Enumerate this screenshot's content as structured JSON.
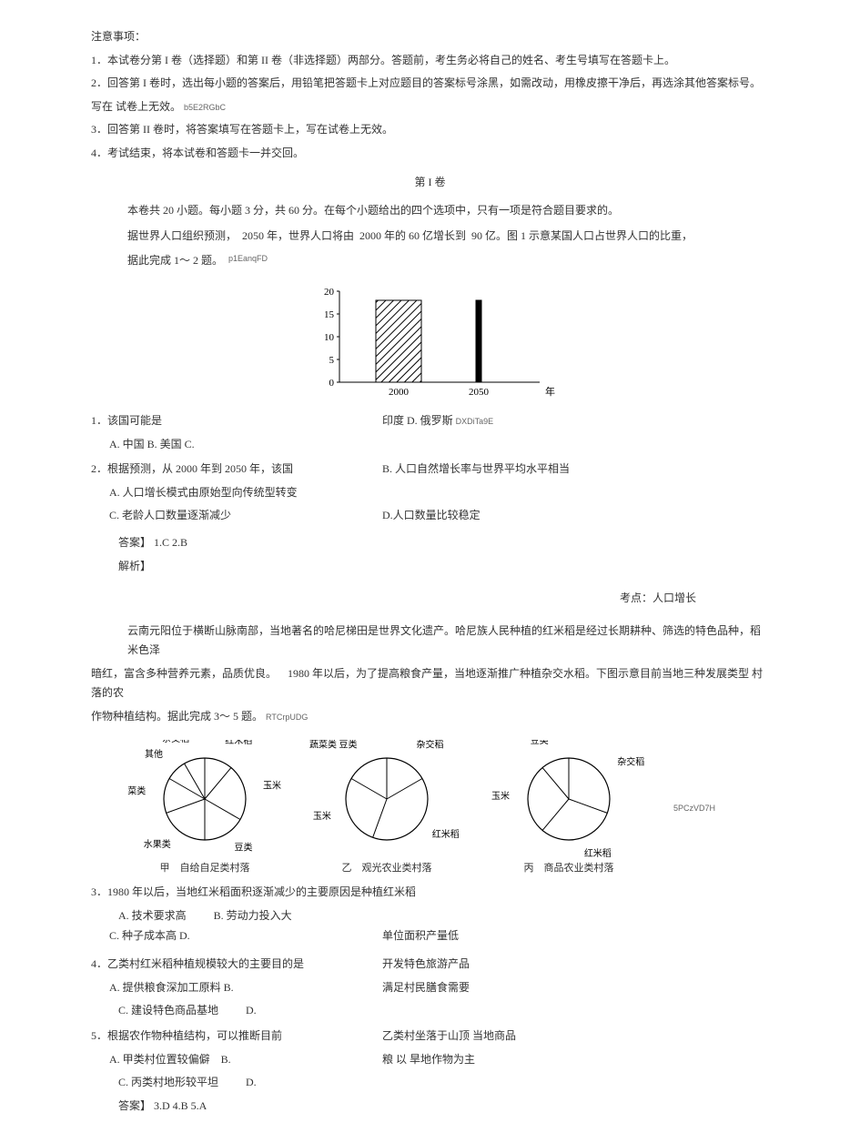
{
  "header": {
    "title": "注意事项：",
    "item1": "1．本试卷分第 I 卷（选择题）和第 II 卷（非选择题）两部分。答题前，考生务必将自己的姓名、考生号填写在答题卡上。",
    "item2a": "2．回答第 I 卷时，选出每小题的答案后，用铅笔把答题卡上对应题目的答案标号涂黑，如需改动，用橡皮擦干净后，再选涂其他答案标号。",
    "item2b": "写在 试卷上无效。",
    "code1": "b5E2RGbC",
    "item3": "3．回答第 II 卷时，将答案填写在答题卡上，写在试卷上无效。",
    "item4": "4．考试结束，将本试卷和答题卡一并交回。"
  },
  "volume": {
    "title": "第 I 卷",
    "intro": "本卷共 20 小题。每小题 3 分，共 60 分。在每个小题给出的四个选项中，只有一项是符合题目要求的。",
    "pred": {
      "p1": "据世界人口组织预测，",
      "p2": "2050 年，世界人口将由",
      "p3": "2000 年的 60 亿增长到",
      "p4": "90 亿。图 1 示意某国人口占世界人口的比重，",
      "p5": "据此完成 1～ 2 题。",
      "code": "p1EanqFD"
    }
  },
  "bar_chart": {
    "type": "bar",
    "ylim": [
      0,
      20
    ],
    "yticks": [
      0,
      5,
      10,
      15,
      20
    ],
    "categories": [
      "2000",
      "2050"
    ],
    "values": [
      18,
      18
    ],
    "bar2_narrow": true,
    "axis_label": "年",
    "axis_color": "#000000",
    "fill_pattern": "hatch",
    "stroke": "#000000",
    "background": "#ffffff"
  },
  "q1": {
    "stem": "1．该国可能是",
    "side": "印度 D. 俄罗斯",
    "code": "DXDiTa9E",
    "optA": "A. 中国 B. 美国 C."
  },
  "q2": {
    "stem": "2．根据预测，从 2000 年到 2050 年，该国",
    "optA": "A. 人口增长模式由原始型向传统型转变",
    "optB": "B. 人口自然增长率与世界平均水平相当",
    "optC": "C. 老龄人口数量逐渐减少",
    "optD": "D.人口数量比较稳定"
  },
  "ans12": {
    "ans": "答案】 1.C 2.B",
    "exp": "解析】",
    "topic": "考点：人口增长"
  },
  "passage2": {
    "p1": "云南元阳位于横断山脉南部，当地著名的哈尼梯田是世界文化遗产。哈尼族人民种植的红米稻是经过长期耕种、筛选的特色品种，稻米色泽",
    "p2a": "暗红，富含多种营养元素，品质优良。",
    "p2b": "1980 年以后，为了提高粮食产量，当地逐渐推广种植杂交水稻。下图示意目前当地三种发展类型",
    "p2c": "村落的农",
    "p3": "作物种植结构。据此完成 3～ 5 题。",
    "code": "RTCrpUDG"
  },
  "pies": {
    "type": "pie",
    "stroke": "#000000",
    "fill": "#ffffff",
    "font_size": 10,
    "pieA": {
      "caption": "甲　自给自足类村落",
      "labels": [
        "红米稻",
        "玉米",
        "豆类",
        "水果类",
        "蔬菜类",
        "其他",
        "杂交稻"
      ],
      "angles": [
        0,
        40,
        120,
        180,
        250,
        300,
        330
      ]
    },
    "pieB": {
      "caption": "乙　观光农业类村落",
      "labels": [
        "杂交稻",
        "红米稻",
        "玉米",
        "蔬菜类 豆类"
      ],
      "angles": [
        0,
        60,
        200,
        300
      ]
    },
    "pieC": {
      "caption": "丙　商品农业类村落",
      "labels": [
        "杂交稻",
        "红米稻",
        "玉米",
        "豆类"
      ],
      "angles": [
        0,
        110,
        220,
        320
      ]
    },
    "code": "5PCzVD7H"
  },
  "q3": {
    "stem": "3．1980 年以后，当地红米稻面积逐渐减少的主要原因是种植红米稻",
    "optA": "A. 技术要求高",
    "optB": "B. 劳动力投入大",
    "optC": "C. 种子成本高 D.",
    "optD": "单位面积产量低"
  },
  "q4": {
    "stem": "4．乙类村红米稻种植规模较大的主要目的是",
    "optA": "A. 提供粮食深加工原料 B.",
    "optB": "开发特色旅游产品",
    "optC": "C. 建设特色商品基地",
    "optD": "D.",
    "optExtra": "满足村民膳食需要"
  },
  "q5": {
    "stem": "5．根据农作物种植结构，可以推断目前",
    "optA": "A. 甲类村位置较偏僻",
    "optB": "B.",
    "optBx": "乙类村坐落于山顶 当地商品",
    "optC": "C. 丙类村地形较平坦",
    "optD": "D.",
    "optDx": "粮 以 旱地作物为主"
  },
  "ans345": {
    "ans": "答案】 3.D 4.B 5.A"
  }
}
